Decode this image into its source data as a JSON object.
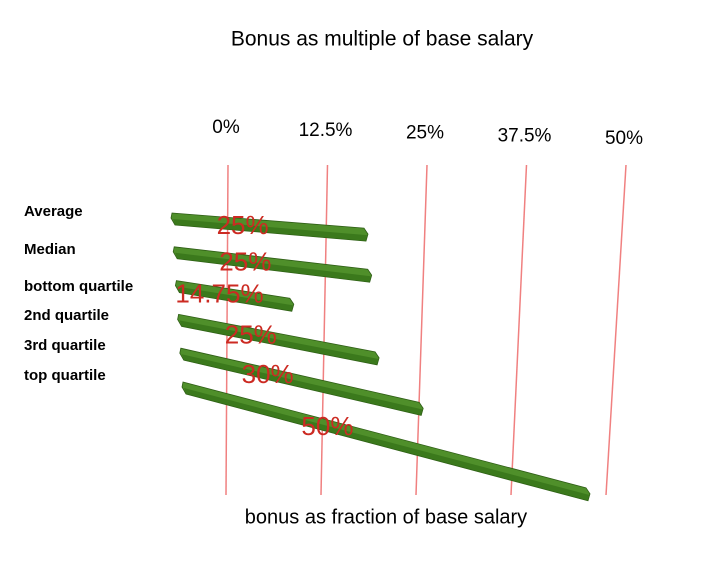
{
  "chart_data": {
    "type": "bar",
    "orientation": "horizontal",
    "title": "Bonus as multiple of base salary",
    "x_label": "bonus as fraction of base salary",
    "categories": [
      "Average",
      "Median",
      "bottom quartile",
      "2nd quartile",
      "3rd quartile",
      "top quartile"
    ],
    "values": [
      25,
      25,
      14.75,
      25,
      30,
      50
    ],
    "value_labels": [
      "25%",
      "25%",
      "14.75%",
      "25%",
      "30%",
      "50%"
    ],
    "color": "#4f8f2a",
    "label_color": "#cc2a22",
    "grid_color": "#f08080",
    "xlim": [
      0,
      50
    ],
    "xticks": [
      {
        "value": 0,
        "label": "0%"
      },
      {
        "value": 12.5,
        "label": "12.5%"
      },
      {
        "value": 25,
        "label": "25%"
      },
      {
        "value": 37.5,
        "label": "37.5%"
      },
      {
        "value": 50,
        "label": "50%"
      }
    ],
    "grid": true
  }
}
